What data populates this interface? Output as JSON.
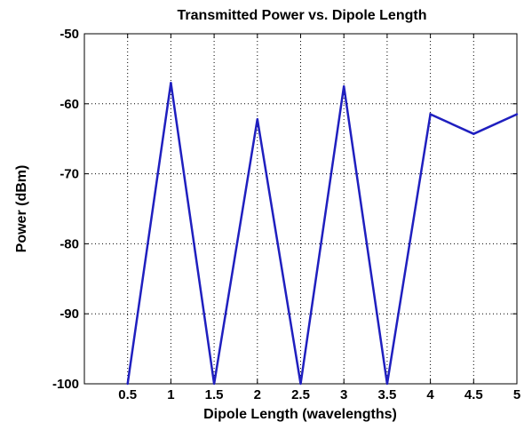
{
  "chart_data": {
    "type": "line",
    "title": "Transmitted Power vs. Dipole Length",
    "xlabel": "Dipole Length (wavelengths)",
    "ylabel": "Power (dBm)",
    "xlim": [
      0,
      5
    ],
    "ylim": [
      -100,
      -50
    ],
    "xticks": [
      "0.5",
      "1",
      "1.5",
      "2",
      "2.5",
      "3",
      "3.5",
      "4",
      "4.5",
      "5"
    ],
    "yticks": [
      "-50",
      "-60",
      "-70",
      "-80",
      "-90",
      "-100"
    ],
    "grid": true,
    "series": [
      {
        "color": "#1f1fbf",
        "x": [
          0.5,
          1,
          1.5,
          2,
          2.5,
          3,
          3.5,
          4,
          4.5,
          5
        ],
        "y": [
          -100,
          -57,
          -100,
          -62.2,
          -100,
          -57.5,
          -100,
          -61.5,
          -64.3,
          -61.5
        ]
      }
    ]
  }
}
